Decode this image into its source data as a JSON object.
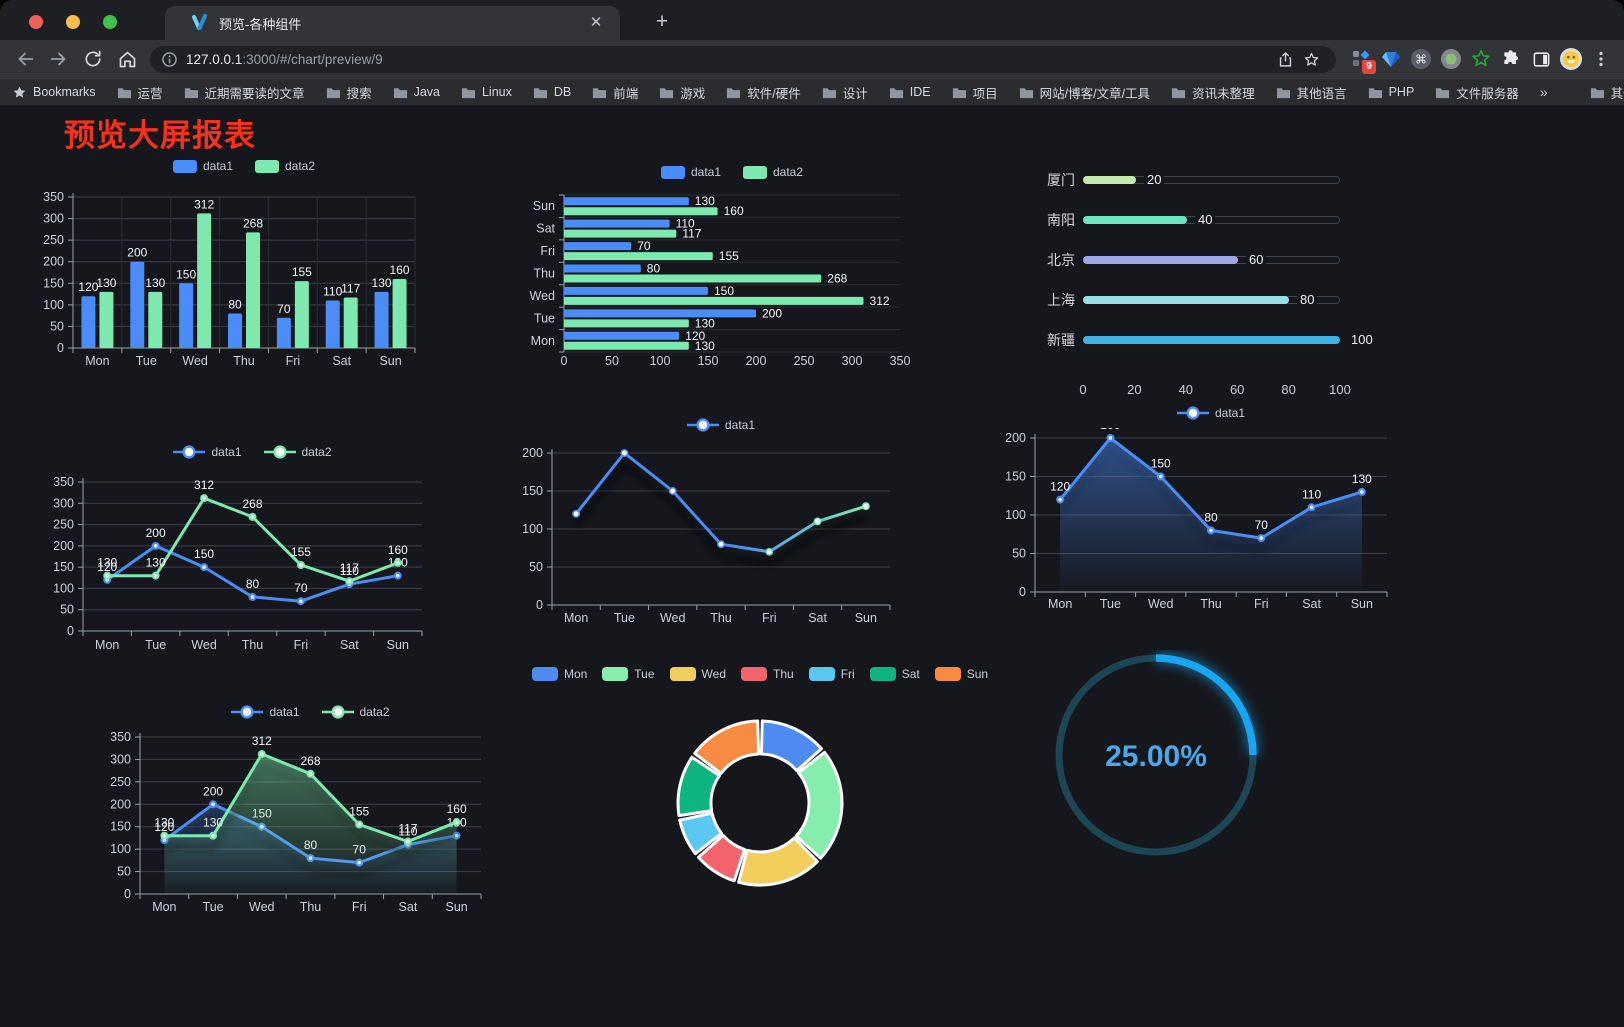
{
  "browser": {
    "tab_title": "预览-各种组件",
    "url_host": "127.0.0.1",
    "url_rest": ":3000/#/chart/preview/9",
    "extension_badge": "9",
    "bookmarks_bar": {
      "root_label": "Bookmarks",
      "folders": [
        "运营",
        "近期需要读的文章",
        "搜索",
        "Java",
        "Linux",
        "DB",
        "前端",
        "游戏",
        "软件/硬件",
        "设计",
        "IDE",
        "项目",
        "网站/博客/文章/工具",
        "资讯未整理",
        "其他语言",
        "PHP",
        "文件服务器"
      ],
      "overflow": "»",
      "other_bookmarks": "其他书签"
    }
  },
  "page": {
    "title": "预览大屏报表",
    "title_color": "#f7311b"
  },
  "theme": {
    "background": "#16171c",
    "axis_text": "#ccd0d7",
    "value_label": "#f4f5f7",
    "grid_line": "#3d4047",
    "split_line": "#2a2d33",
    "axis_line": "#9aa0aa",
    "blue": "#4b8df8",
    "green": "#7de9ae"
  },
  "chart_data": [
    {
      "id": "grouped-bar",
      "type": "bar",
      "categories": [
        "Mon",
        "Tue",
        "Wed",
        "Thu",
        "Fri",
        "Sat",
        "Sun"
      ],
      "series": [
        {
          "name": "data1",
          "color": "#4b8df8",
          "values": [
            120,
            200,
            150,
            80,
            70,
            110,
            130
          ]
        },
        {
          "name": "data2",
          "color": "#7de9ae",
          "values": [
            130,
            130,
            312,
            268,
            155,
            117,
            160
          ]
        }
      ],
      "ylim": [
        0,
        350
      ],
      "yticks": [
        0,
        50,
        100,
        150,
        200,
        250,
        300,
        350
      ],
      "legend_position": "top",
      "grid": true,
      "value_labels": true
    },
    {
      "id": "grouped-bar-horizontal",
      "type": "bar-horizontal",
      "categories": [
        "Mon",
        "Tue",
        "Wed",
        "Thu",
        "Fri",
        "Sat",
        "Sun"
      ],
      "categories_display": "Sun at top, Mon at bottom",
      "series": [
        {
          "name": "data1",
          "color": "#4b8df8",
          "values": [
            120,
            200,
            150,
            80,
            70,
            110,
            130
          ]
        },
        {
          "name": "data2",
          "color": "#7de9ae",
          "values": [
            130,
            130,
            312,
            268,
            155,
            117,
            160
          ]
        }
      ],
      "xlim": [
        0,
        350
      ],
      "xticks": [
        0,
        50,
        100,
        150,
        200,
        250,
        300,
        350
      ],
      "legend_position": "top",
      "value_labels": true
    },
    {
      "id": "city-progress",
      "type": "progress-bars",
      "max": 100,
      "xticks": [
        0,
        20,
        40,
        60,
        80,
        100
      ],
      "items": [
        {
          "label": "厦门",
          "value": 20,
          "color": "#c4ebad"
        },
        {
          "label": "南阳",
          "value": 40,
          "color": "#6be6c1"
        },
        {
          "label": "北京",
          "value": 60,
          "color": "#a0a7e6"
        },
        {
          "label": "上海",
          "value": 80,
          "color": "#96dee8"
        },
        {
          "label": "新疆",
          "value": 100,
          "color": "#3fb1e3"
        }
      ]
    },
    {
      "id": "line-pair",
      "type": "line",
      "categories": [
        "Mon",
        "Tue",
        "Wed",
        "Thu",
        "Fri",
        "Sat",
        "Sun"
      ],
      "series": [
        {
          "name": "data1",
          "color": "#4b8df8",
          "values": [
            120,
            200,
            150,
            80,
            70,
            110,
            130
          ]
        },
        {
          "name": "data2",
          "color": "#7de9ae",
          "values": [
            130,
            130,
            312,
            268,
            155,
            117,
            160
          ]
        }
      ],
      "ylim": [
        0,
        350
      ],
      "yticks": [
        0,
        50,
        100,
        150,
        200,
        250,
        300,
        350
      ],
      "legend_position": "top",
      "value_labels": true
    },
    {
      "id": "gradient-line",
      "type": "line",
      "categories": [
        "Mon",
        "Tue",
        "Wed",
        "Thu",
        "Fri",
        "Sat",
        "Sun"
      ],
      "series": [
        {
          "name": "data1",
          "gradient": [
            "#4b8df8",
            "#7de9ae"
          ],
          "values": [
            120,
            200,
            150,
            80,
            70,
            110,
            130
          ],
          "shadow": true
        }
      ],
      "ylim": [
        0,
        200
      ],
      "yticks": [
        0,
        50,
        100,
        150,
        200
      ],
      "legend_position": "top",
      "value_labels": false
    },
    {
      "id": "area-line",
      "type": "line",
      "categories": [
        "Mon",
        "Tue",
        "Wed",
        "Thu",
        "Fri",
        "Sat",
        "Sun"
      ],
      "series": [
        {
          "name": "data1",
          "color": "#4b8df8",
          "values": [
            120,
            200,
            150,
            80,
            70,
            110,
            130
          ],
          "area": true,
          "shadow": true
        }
      ],
      "ylim": [
        0,
        200
      ],
      "yticks": [
        0,
        50,
        100,
        150,
        200
      ],
      "legend_position": "top",
      "value_labels": true
    },
    {
      "id": "dual-area-line",
      "type": "line",
      "categories": [
        "Mon",
        "Tue",
        "Wed",
        "Thu",
        "Fri",
        "Sat",
        "Sun"
      ],
      "series": [
        {
          "name": "data1",
          "color": "#4b8df8",
          "values": [
            120,
            200,
            150,
            80,
            70,
            110,
            130
          ],
          "area": true,
          "shadow": true
        },
        {
          "name": "data2",
          "color": "#7de9ae",
          "values": [
            130,
            130,
            312,
            268,
            155,
            117,
            160
          ],
          "area": true,
          "shadow": true
        }
      ],
      "ylim": [
        0,
        350
      ],
      "yticks": [
        0,
        50,
        100,
        150,
        200,
        250,
        300,
        350
      ],
      "legend_position": "top",
      "value_labels": true
    },
    {
      "id": "weekday-donut",
      "type": "pie",
      "subtype": "donut",
      "categories": [
        "Mon",
        "Tue",
        "Wed",
        "Thu",
        "Fri",
        "Sat",
        "Sun"
      ],
      "values": [
        120,
        200,
        150,
        80,
        70,
        110,
        130
      ],
      "colors": [
        "#4e8bf0",
        "#87edad",
        "#f2ce5d",
        "#f4646c",
        "#5bc8f2",
        "#0eb581",
        "#f78b41"
      ],
      "legend_position": "top"
    },
    {
      "id": "percent-gauge",
      "type": "gauge",
      "value": 25,
      "label": "25.00%",
      "color": "#17a7f2",
      "track_color": "#1c4653",
      "text_color": "#4ba7ea"
    }
  ]
}
